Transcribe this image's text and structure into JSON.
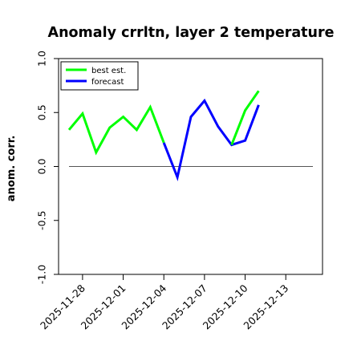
{
  "chart_data": {
    "type": "line",
    "title": "Anomaly crrltn, layer 2 temperature",
    "ylabel": "anom. corr.",
    "xlabel": "",
    "ylim": [
      -1.0,
      1.0
    ],
    "yticks": [
      -1.0,
      -0.5,
      0.0,
      0.5,
      1.0
    ],
    "ytick_labels": [
      "-1.0",
      "-0.5",
      "0.0",
      "0.5",
      "1.0"
    ],
    "x_ticks": [
      {
        "label": "2025-11-28",
        "color": "#000000"
      },
      {
        "label": "2025-12-01",
        "color": "#000000"
      },
      {
        "label": "2025-12-04",
        "color": "#228B22"
      },
      {
        "label": "2025-12-07",
        "color": "#000000"
      },
      {
        "label": "2025-12-10",
        "color": "#000000"
      },
      {
        "label": "2025-12-13",
        "color": "#000000"
      }
    ],
    "x_range": [
      "2025-11-27",
      "2025-12-15"
    ],
    "reference_line": 0.0,
    "legend_position": "top-left",
    "series": [
      {
        "name": "best est.",
        "color": "#00ff00",
        "x": [
          "2025-11-27",
          "2025-11-28",
          "2025-11-29",
          "2025-11-30",
          "2025-12-01",
          "2025-12-02",
          "2025-12-03",
          "2025-12-04"
        ],
        "y": [
          0.34,
          0.49,
          0.13,
          0.36,
          0.46,
          0.34,
          0.55,
          0.22
        ]
      },
      {
        "name": "forecast",
        "color": "#0000ff",
        "x": [
          "2025-12-04",
          "2025-12-05",
          "2025-12-06",
          "2025-12-07",
          "2025-12-08",
          "2025-12-09",
          "2025-12-10",
          "2025-12-11"
        ],
        "y": [
          0.22,
          -0.1,
          0.46,
          0.61,
          0.37,
          0.2,
          0.24,
          0.57
        ]
      },
      {
        "name": "",
        "color": "#00ff00",
        "x": [
          "2025-12-09",
          "2025-12-10",
          "2025-12-11"
        ],
        "y": [
          0.2,
          0.52,
          0.7
        ]
      }
    ]
  }
}
